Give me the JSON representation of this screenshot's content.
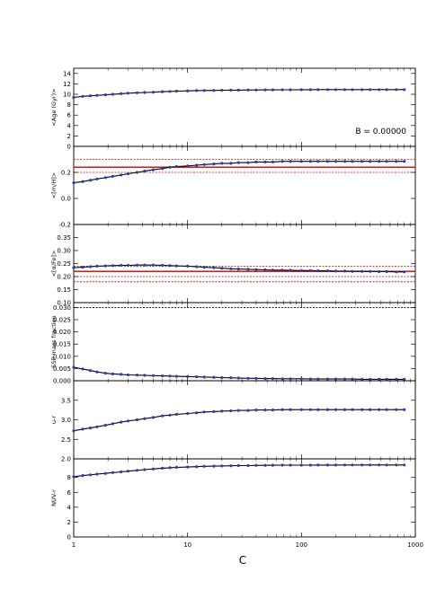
{
  "chart_data": {
    "type": "line",
    "x_axis": {
      "label": "C",
      "scale": "log",
      "range": [
        1,
        1000
      ],
      "ticks": [
        1,
        10,
        100,
        1000
      ],
      "tick_labels": [
        "1",
        "10",
        "100",
        "1000"
      ]
    },
    "x": [
      1,
      1.2,
      1.4,
      1.6,
      1.9,
      2.2,
      2.6,
      3,
      3.6,
      4.2,
      5,
      6,
      7,
      8,
      10,
      12,
      14,
      17,
      20,
      24,
      28,
      34,
      40,
      48,
      56,
      68,
      80,
      100,
      120,
      140,
      170,
      200,
      240,
      280,
      340,
      400,
      480,
      560,
      680,
      800
    ],
    "panels": [
      {
        "ylabel": "<Age (Gyr)>",
        "ylim": [
          0,
          15
        ],
        "yticks": [
          0,
          2,
          4,
          6,
          8,
          10,
          12,
          14
        ],
        "ytick_labels": [
          "0",
          "2",
          "4",
          "6",
          "8",
          "10",
          "12",
          "14"
        ],
        "values": [
          9.4,
          9.6,
          9.7,
          9.8,
          9.9,
          10.0,
          10.1,
          10.2,
          10.3,
          10.35,
          10.4,
          10.5,
          10.55,
          10.6,
          10.65,
          10.7,
          10.72,
          10.75,
          10.78,
          10.8,
          10.8,
          10.82,
          10.83,
          10.85,
          10.85,
          10.86,
          10.87,
          10.88,
          10.88,
          10.89,
          10.89,
          10.9,
          10.9,
          10.9,
          10.9,
          10.9,
          10.9,
          10.9,
          10.9,
          10.9
        ],
        "annotation": "B = 0.00000",
        "ref_lines": []
      },
      {
        "ylabel": "<[m/H]>",
        "ylim": [
          -0.2,
          0.4
        ],
        "yticks": [
          -0.2,
          0.0,
          0.2
        ],
        "ytick_labels": [
          "-0.2",
          "0.0",
          "0.2"
        ],
        "values": [
          0.12,
          0.13,
          0.14,
          0.15,
          0.16,
          0.17,
          0.18,
          0.19,
          0.2,
          0.21,
          0.22,
          0.23,
          0.24,
          0.245,
          0.25,
          0.255,
          0.26,
          0.265,
          0.27,
          0.27,
          0.275,
          0.275,
          0.28,
          0.28,
          0.28,
          0.285,
          0.285,
          0.285,
          0.285,
          0.285,
          0.285,
          0.285,
          0.285,
          0.285,
          0.285,
          0.285,
          0.285,
          0.285,
          0.285,
          0.285
        ],
        "ref_lines": [
          {
            "y": 0.24,
            "style": "solid",
            "color": "#cc0000"
          },
          {
            "y": 0.3,
            "style": "dotted",
            "color": "#cc0000"
          },
          {
            "y": 0.2,
            "style": "dotted",
            "color": "#cc0000"
          }
        ]
      },
      {
        "ylabel": "<[α/Fe]>",
        "ylim": [
          0.1,
          0.4
        ],
        "yticks": [
          0.1,
          0.15,
          0.2,
          0.25,
          0.3,
          0.35
        ],
        "ytick_labels": [
          "0.10",
          "0.15",
          "0.20",
          "0.25",
          "0.30",
          "0.35"
        ],
        "values": [
          0.234,
          0.236,
          0.238,
          0.24,
          0.241,
          0.242,
          0.243,
          0.243,
          0.244,
          0.244,
          0.244,
          0.243,
          0.242,
          0.241,
          0.24,
          0.238,
          0.236,
          0.234,
          0.232,
          0.23,
          0.229,
          0.228,
          0.227,
          0.226,
          0.225,
          0.225,
          0.224,
          0.223,
          0.223,
          0.222,
          0.222,
          0.221,
          0.221,
          0.22,
          0.22,
          0.22,
          0.219,
          0.219,
          0.218,
          0.218
        ],
        "ref_lines": [
          {
            "y": 0.22,
            "style": "solid",
            "color": "#cc0000"
          },
          {
            "y": 0.24,
            "style": "dotted",
            "color": "#cc0000"
          },
          {
            "y": 0.2,
            "style": "dotted",
            "color": "#cc0000"
          },
          {
            "y": 0.18,
            "style": "dotted",
            "color": "#cc0000"
          }
        ]
      },
      {
        "ylabel": "SSP mass fraction",
        "ylim": [
          0,
          0.032
        ],
        "yticks": [
          0.0,
          0.005,
          0.01,
          0.015,
          0.02,
          0.025,
          0.03
        ],
        "ytick_labels": [
          "0.000",
          "0.005",
          "0.010",
          "0.015",
          "0.020",
          "0.025",
          "0.030"
        ],
        "values": [
          0.0055,
          0.0048,
          0.0042,
          0.0036,
          0.0031,
          0.0028,
          0.0026,
          0.0024,
          0.0023,
          0.0022,
          0.0021,
          0.002,
          0.0019,
          0.0018,
          0.0017,
          0.0016,
          0.0015,
          0.0014,
          0.0013,
          0.0012,
          0.0011,
          0.001,
          0.001,
          0.0009,
          0.0009,
          0.0008,
          0.0008,
          0.0008,
          0.0007,
          0.0007,
          0.0007,
          0.0007,
          0.0007,
          0.0007,
          0.0006,
          0.0006,
          0.0006,
          0.0006,
          0.0006,
          0.0006
        ],
        "ref_lines": [
          {
            "y": 0.03,
            "style": "dotted",
            "color": "#000000"
          }
        ]
      },
      {
        "ylabel": "u-r",
        "ylim": [
          2.0,
          4.0
        ],
        "yticks": [
          2.0,
          2.5,
          3.0,
          3.5
        ],
        "ytick_labels": [
          "2.0",
          "2.5",
          "3.0",
          "3.5"
        ],
        "values": [
          2.72,
          2.76,
          2.79,
          2.82,
          2.86,
          2.9,
          2.94,
          2.97,
          3.0,
          3.03,
          3.06,
          3.1,
          3.12,
          3.14,
          3.16,
          3.18,
          3.2,
          3.21,
          3.22,
          3.23,
          3.24,
          3.24,
          3.25,
          3.25,
          3.25,
          3.26,
          3.26,
          3.26,
          3.26,
          3.26,
          3.26,
          3.26,
          3.26,
          3.26,
          3.26,
          3.26,
          3.26,
          3.26,
          3.26,
          3.26
        ],
        "ref_lines": []
      },
      {
        "ylabel": "NUV-r",
        "ylim": [
          0,
          10.5
        ],
        "yticks": [
          0,
          2,
          4,
          6,
          8
        ],
        "ytick_labels": [
          "0",
          "2",
          "4",
          "6",
          "8"
        ],
        "values": [
          8.1,
          8.25,
          8.35,
          8.45,
          8.55,
          8.65,
          8.75,
          8.85,
          8.95,
          9.05,
          9.15,
          9.25,
          9.3,
          9.35,
          9.4,
          9.45,
          9.5,
          9.52,
          9.55,
          9.57,
          9.6,
          9.6,
          9.62,
          9.63,
          9.64,
          9.65,
          9.65,
          9.66,
          9.66,
          9.67,
          9.67,
          9.67,
          9.68,
          9.68,
          9.68,
          9.68,
          9.68,
          9.68,
          9.68,
          9.68
        ],
        "ref_lines": []
      }
    ],
    "series_color": "#2a3fb0",
    "fit_color": "#000000",
    "grid": false,
    "legend": "none"
  }
}
